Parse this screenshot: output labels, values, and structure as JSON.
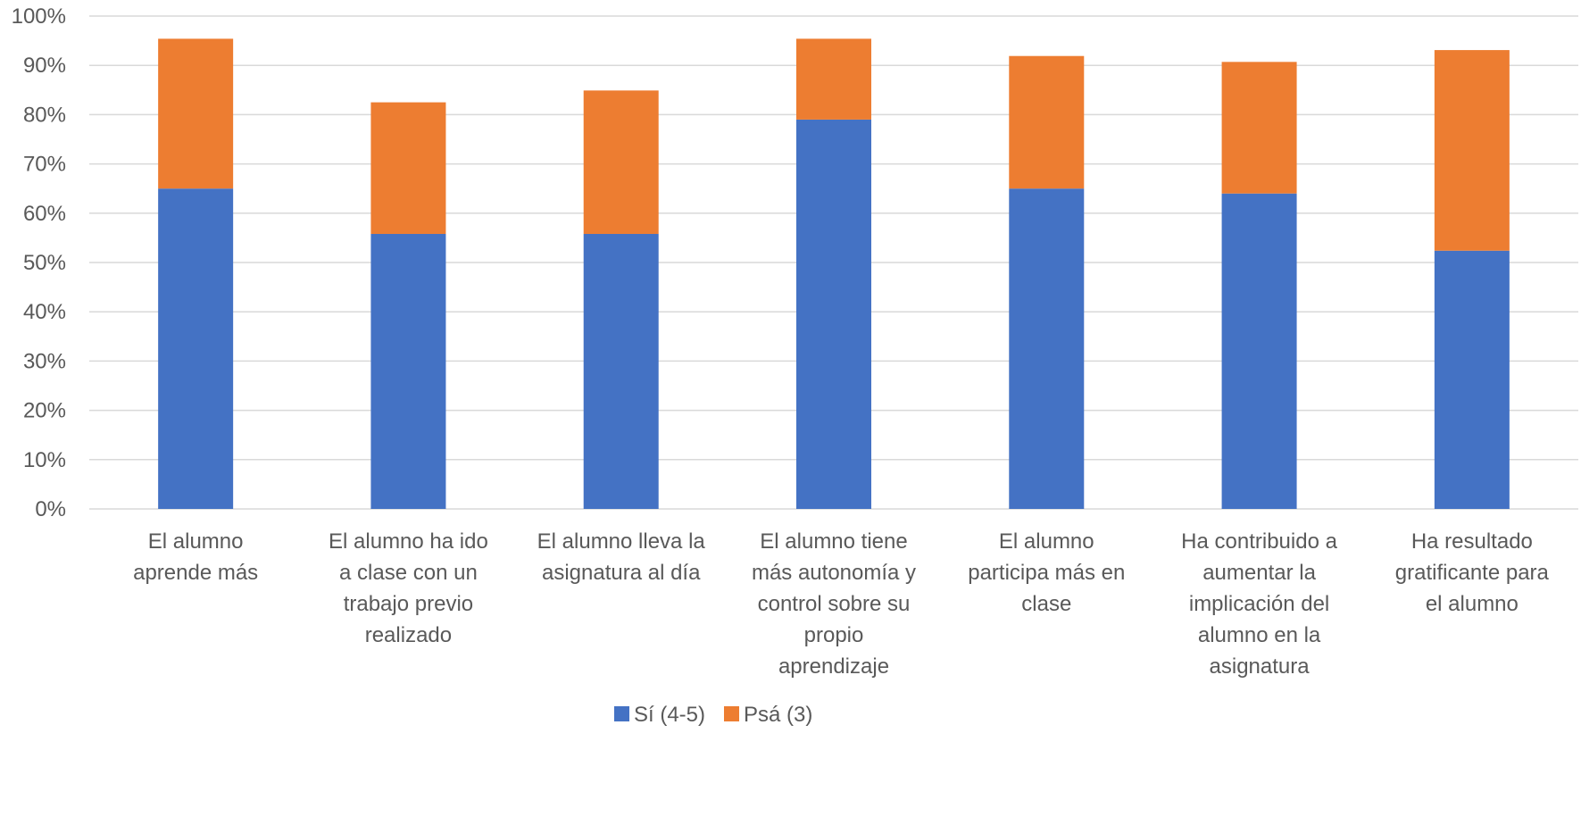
{
  "chart_data": {
    "type": "bar",
    "stacked": true,
    "title": "",
    "xlabel": "",
    "ylabel": "",
    "ylim": [
      0,
      100
    ],
    "y_tick_format": "percent",
    "y_ticks": [
      "0%",
      "10%",
      "20%",
      "30%",
      "40%",
      "50%",
      "60%",
      "70%",
      "80%",
      "90%",
      "100%"
    ],
    "grid": true,
    "legend_position": "bottom",
    "categories": [
      [
        "El alumno",
        "aprende más"
      ],
      [
        "El alumno ha ido",
        "a clase con un",
        "trabajo previo",
        "realizado"
      ],
      [
        "El alumno lleva la",
        "asignatura al día"
      ],
      [
        "El alumno tiene",
        "más autonomía y",
        "control sobre su",
        "propio",
        "aprendizaje"
      ],
      [
        "El alumno",
        "participa más en",
        "clase"
      ],
      [
        "Ha contribuido a",
        "aumentar la",
        "implicación del",
        "alumno en la",
        "asignatura"
      ],
      [
        "Ha resultado",
        "gratificante para",
        "el alumno"
      ]
    ],
    "series": [
      {
        "name": "Sí (4-5)",
        "color": "#4472C4",
        "values": [
          65,
          55.8,
          55.8,
          79,
          65,
          64,
          52.4
        ]
      },
      {
        "name": "Psá (3)",
        "color": "#ED7D31",
        "values": [
          30.4,
          26.7,
          29.1,
          16.4,
          26.9,
          26.7,
          40.7
        ]
      }
    ]
  }
}
